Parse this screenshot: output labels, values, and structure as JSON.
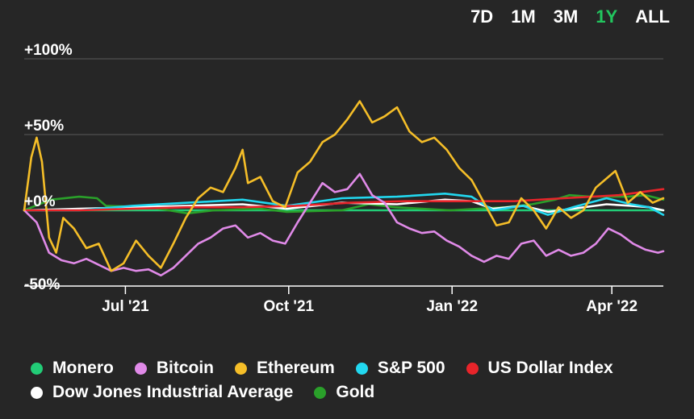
{
  "range_tabs": [
    {
      "label": "7D",
      "active": false
    },
    {
      "label": "1M",
      "active": false
    },
    {
      "label": "3M",
      "active": false
    },
    {
      "label": "1Y",
      "active": true
    },
    {
      "label": "ALL",
      "active": false
    }
  ],
  "colors": {
    "background": "#262626",
    "gridline": "#5a5a5a",
    "active_tab": "#22c55e"
  },
  "chart_data": {
    "type": "line",
    "title": "",
    "xlabel": "",
    "ylabel": "",
    "ylim": [
      -50,
      100
    ],
    "xlim": [
      "2021-05-05",
      "2022-04-30"
    ],
    "yticks": [
      {
        "value": 100,
        "label": "+100%"
      },
      {
        "value": 50,
        "label": "+50%"
      },
      {
        "value": 0,
        "label": "+0%"
      },
      {
        "value": -50,
        "label": "-50%"
      }
    ],
    "xticks": [
      {
        "date": "2021-07-01",
        "label": "Jul '21"
      },
      {
        "date": "2021-10-01",
        "label": "Oct '21"
      },
      {
        "date": "2022-01-01",
        "label": "Jan '22"
      },
      {
        "date": "2022-04-01",
        "label": "Apr '22"
      }
    ],
    "grid": true,
    "legend_position": "bottom",
    "series": [
      {
        "name": "Monero",
        "color": "#22cc77",
        "points": [
          [
            "2021-05-05",
            0
          ],
          [
            "2022-04-30",
            0
          ]
        ]
      },
      {
        "name": "Bitcoin",
        "color": "#e08ae8",
        "points": [
          [
            "2021-05-05",
            0
          ],
          [
            "2021-05-12",
            -8
          ],
          [
            "2021-05-19",
            -28
          ],
          [
            "2021-05-26",
            -33
          ],
          [
            "2021-06-02",
            -35
          ],
          [
            "2021-06-09",
            -32
          ],
          [
            "2021-06-16",
            -36
          ],
          [
            "2021-06-23",
            -40
          ],
          [
            "2021-06-30",
            -38
          ],
          [
            "2021-07-07",
            -40
          ],
          [
            "2021-07-14",
            -39
          ],
          [
            "2021-07-21",
            -43
          ],
          [
            "2021-07-28",
            -38
          ],
          [
            "2021-08-04",
            -30
          ],
          [
            "2021-08-11",
            -22
          ],
          [
            "2021-08-18",
            -18
          ],
          [
            "2021-08-25",
            -12
          ],
          [
            "2021-09-01",
            -10
          ],
          [
            "2021-09-08",
            -18
          ],
          [
            "2021-09-15",
            -15
          ],
          [
            "2021-09-22",
            -20
          ],
          [
            "2021-09-29",
            -22
          ],
          [
            "2021-10-06",
            -8
          ],
          [
            "2021-10-13",
            5
          ],
          [
            "2021-10-20",
            18
          ],
          [
            "2021-10-27",
            12
          ],
          [
            "2021-11-03",
            14
          ],
          [
            "2021-11-10",
            24
          ],
          [
            "2021-11-17",
            10
          ],
          [
            "2021-11-24",
            5
          ],
          [
            "2021-12-01",
            -8
          ],
          [
            "2021-12-08",
            -12
          ],
          [
            "2021-12-15",
            -15
          ],
          [
            "2021-12-22",
            -14
          ],
          [
            "2021-12-29",
            -20
          ],
          [
            "2022-01-05",
            -24
          ],
          [
            "2022-01-12",
            -30
          ],
          [
            "2022-01-19",
            -34
          ],
          [
            "2022-01-26",
            -30
          ],
          [
            "2022-02-02",
            -32
          ],
          [
            "2022-02-09",
            -22
          ],
          [
            "2022-02-16",
            -20
          ],
          [
            "2022-02-23",
            -30
          ],
          [
            "2022-03-02",
            -26
          ],
          [
            "2022-03-09",
            -30
          ],
          [
            "2022-03-16",
            -28
          ],
          [
            "2022-03-23",
            -22
          ],
          [
            "2022-03-30",
            -12
          ],
          [
            "2022-04-06",
            -16
          ],
          [
            "2022-04-13",
            -22
          ],
          [
            "2022-04-20",
            -26
          ],
          [
            "2022-04-27",
            -28
          ],
          [
            "2022-04-30",
            -27
          ]
        ]
      },
      {
        "name": "Ethereum",
        "color": "#f5be28",
        "points": [
          [
            "2021-05-05",
            0
          ],
          [
            "2021-05-09",
            35
          ],
          [
            "2021-05-12",
            48
          ],
          [
            "2021-05-15",
            32
          ],
          [
            "2021-05-19",
            -18
          ],
          [
            "2021-05-23",
            -28
          ],
          [
            "2021-05-27",
            -5
          ],
          [
            "2021-06-02",
            -12
          ],
          [
            "2021-06-09",
            -25
          ],
          [
            "2021-06-16",
            -22
          ],
          [
            "2021-06-23",
            -40
          ],
          [
            "2021-06-30",
            -35
          ],
          [
            "2021-07-07",
            -20
          ],
          [
            "2021-07-14",
            -30
          ],
          [
            "2021-07-21",
            -38
          ],
          [
            "2021-07-28",
            -22
          ],
          [
            "2021-08-04",
            -5
          ],
          [
            "2021-08-11",
            8
          ],
          [
            "2021-08-18",
            15
          ],
          [
            "2021-08-25",
            12
          ],
          [
            "2021-09-01",
            28
          ],
          [
            "2021-09-05",
            40
          ],
          [
            "2021-09-08",
            18
          ],
          [
            "2021-09-15",
            22
          ],
          [
            "2021-09-22",
            6
          ],
          [
            "2021-09-29",
            2
          ],
          [
            "2021-10-06",
            25
          ],
          [
            "2021-10-13",
            32
          ],
          [
            "2021-10-20",
            45
          ],
          [
            "2021-10-27",
            50
          ],
          [
            "2021-11-03",
            60
          ],
          [
            "2021-11-10",
            72
          ],
          [
            "2021-11-17",
            58
          ],
          [
            "2021-11-24",
            62
          ],
          [
            "2021-12-01",
            68
          ],
          [
            "2021-12-08",
            52
          ],
          [
            "2021-12-15",
            45
          ],
          [
            "2021-12-22",
            48
          ],
          [
            "2021-12-29",
            40
          ],
          [
            "2022-01-05",
            28
          ],
          [
            "2022-01-12",
            20
          ],
          [
            "2022-01-19",
            5
          ],
          [
            "2022-01-26",
            -10
          ],
          [
            "2022-02-02",
            -8
          ],
          [
            "2022-02-09",
            8
          ],
          [
            "2022-02-16",
            0
          ],
          [
            "2022-02-23",
            -12
          ],
          [
            "2022-03-02",
            2
          ],
          [
            "2022-03-09",
            -5
          ],
          [
            "2022-03-16",
            0
          ],
          [
            "2022-03-23",
            15
          ],
          [
            "2022-03-30",
            22
          ],
          [
            "2022-04-03",
            26
          ],
          [
            "2022-04-10",
            5
          ],
          [
            "2022-04-17",
            12
          ],
          [
            "2022-04-24",
            5
          ],
          [
            "2022-04-30",
            8
          ]
        ]
      },
      {
        "name": "S&P 500",
        "color": "#22d8f0",
        "points": [
          [
            "2021-05-05",
            0
          ],
          [
            "2021-06-05",
            0
          ],
          [
            "2021-07-05",
            3
          ],
          [
            "2021-08-05",
            5
          ],
          [
            "2021-09-05",
            7
          ],
          [
            "2021-09-30",
            3
          ],
          [
            "2021-10-31",
            8
          ],
          [
            "2021-12-01",
            9
          ],
          [
            "2021-12-28",
            11
          ],
          [
            "2022-01-12",
            9
          ],
          [
            "2022-01-24",
            0
          ],
          [
            "2022-02-10",
            3
          ],
          [
            "2022-02-24",
            -3
          ],
          [
            "2022-03-10",
            2
          ],
          [
            "2022-03-29",
            8
          ],
          [
            "2022-04-12",
            4
          ],
          [
            "2022-04-22",
            2
          ],
          [
            "2022-04-30",
            -3
          ]
        ]
      },
      {
        "name": "US Dollar Index",
        "color": "#e8242a",
        "points": [
          [
            "2021-05-05",
            0
          ],
          [
            "2021-06-05",
            0
          ],
          [
            "2021-07-05",
            1
          ],
          [
            "2021-08-05",
            2
          ],
          [
            "2021-09-05",
            2
          ],
          [
            "2021-10-05",
            3
          ],
          [
            "2021-11-05",
            5
          ],
          [
            "2021-12-05",
            6
          ],
          [
            "2022-01-05",
            6
          ],
          [
            "2022-02-05",
            6
          ],
          [
            "2022-03-05",
            8
          ],
          [
            "2022-04-05",
            10
          ],
          [
            "2022-04-30",
            14
          ]
        ]
      },
      {
        "name": "Dow Jones Industrial Average",
        "color": "#ffffff",
        "points": [
          [
            "2021-05-05",
            0
          ],
          [
            "2021-06-05",
            1
          ],
          [
            "2021-07-05",
            2
          ],
          [
            "2021-08-05",
            3
          ],
          [
            "2021-09-05",
            4
          ],
          [
            "2021-09-30",
            1
          ],
          [
            "2021-10-31",
            5
          ],
          [
            "2021-12-01",
            4
          ],
          [
            "2021-12-28",
            7
          ],
          [
            "2022-01-12",
            6
          ],
          [
            "2022-01-24",
            1
          ],
          [
            "2022-02-10",
            3
          ],
          [
            "2022-02-24",
            -1
          ],
          [
            "2022-03-10",
            1
          ],
          [
            "2022-03-29",
            4
          ],
          [
            "2022-04-12",
            3
          ],
          [
            "2022-04-22",
            2
          ],
          [
            "2022-04-30",
            0
          ]
        ]
      },
      {
        "name": "Gold",
        "color": "#2aa02a",
        "points": [
          [
            "2021-05-05",
            0
          ],
          [
            "2021-05-20",
            7
          ],
          [
            "2021-06-05",
            9
          ],
          [
            "2021-06-15",
            8
          ],
          [
            "2021-06-20",
            3
          ],
          [
            "2021-07-15",
            2
          ],
          [
            "2021-08-05",
            -2
          ],
          [
            "2021-08-20",
            0
          ],
          [
            "2021-09-15",
            1
          ],
          [
            "2021-09-30",
            -1
          ],
          [
            "2021-10-31",
            0
          ],
          [
            "2021-11-15",
            4
          ],
          [
            "2021-11-30",
            2
          ],
          [
            "2021-12-31",
            0
          ],
          [
            "2022-01-31",
            2
          ],
          [
            "2022-02-15",
            4
          ],
          [
            "2022-02-28",
            7
          ],
          [
            "2022-03-08",
            10
          ],
          [
            "2022-03-20",
            9
          ],
          [
            "2022-04-10",
            9
          ],
          [
            "2022-04-20",
            10
          ],
          [
            "2022-04-30",
            7
          ]
        ]
      }
    ]
  }
}
